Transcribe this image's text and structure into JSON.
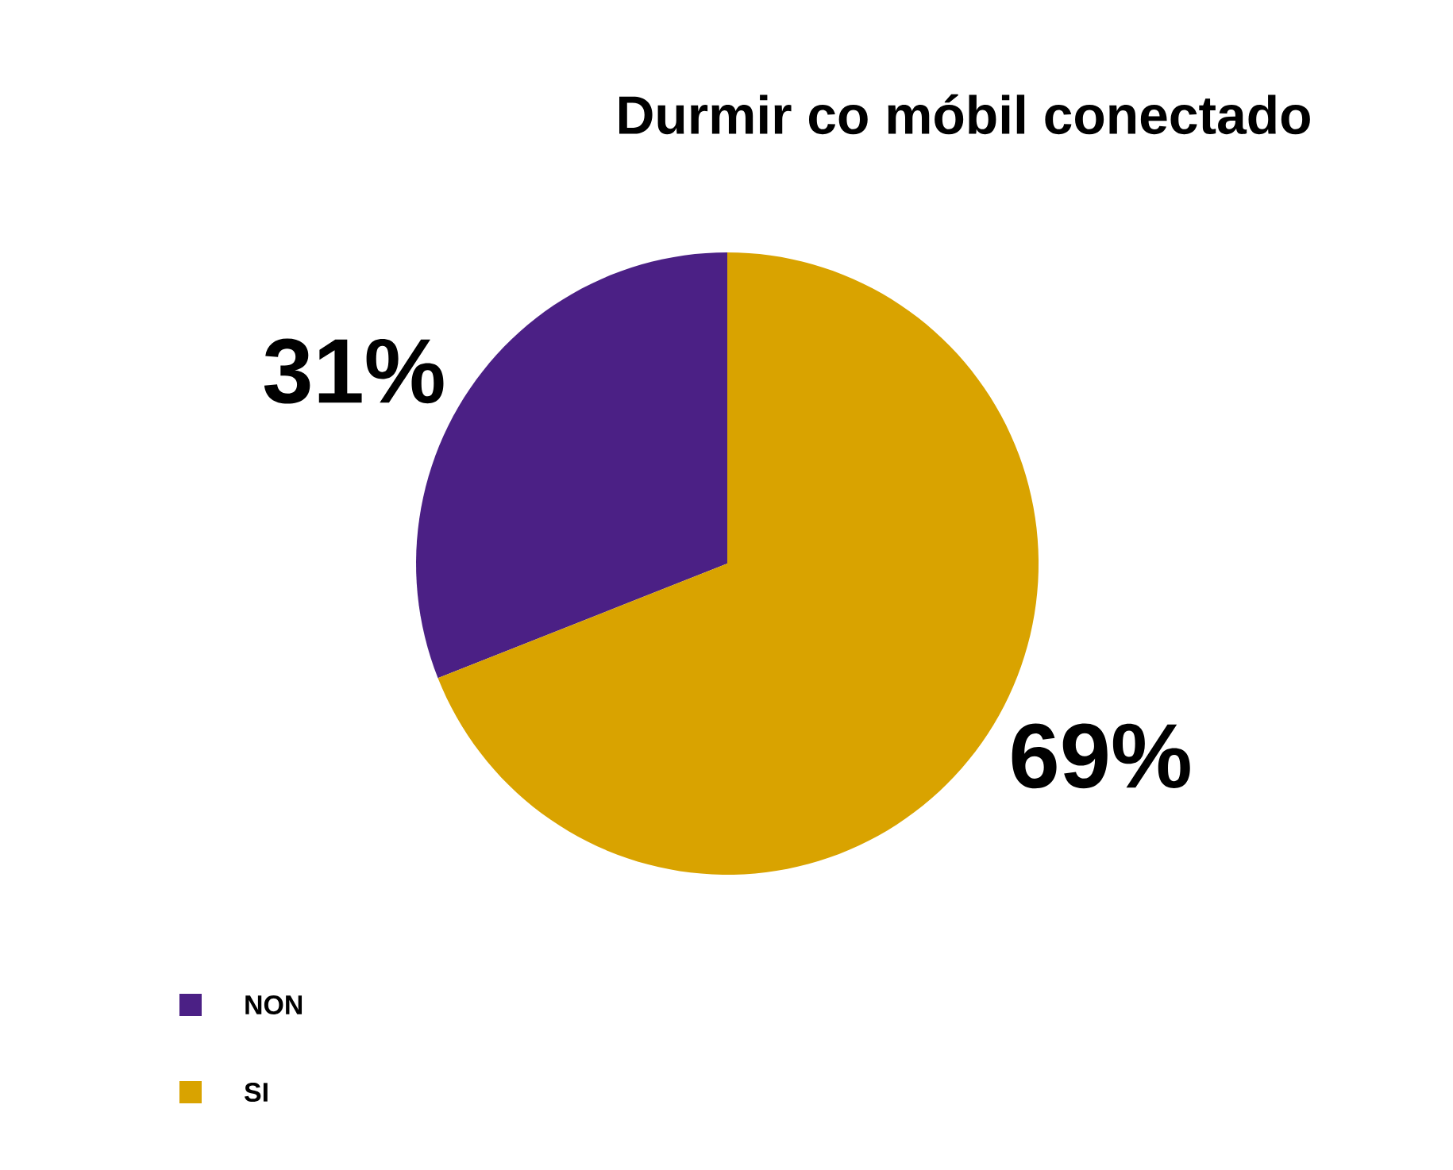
{
  "chart_data": {
    "type": "pie",
    "title": "Durmir co móbil conectado",
    "categories": [
      "NON",
      "SI"
    ],
    "values": [
      31,
      69
    ],
    "colors": [
      "#4b2085",
      "#d9a300"
    ],
    "value_labels": [
      "31%",
      "69%"
    ],
    "legend": "bottom left"
  }
}
